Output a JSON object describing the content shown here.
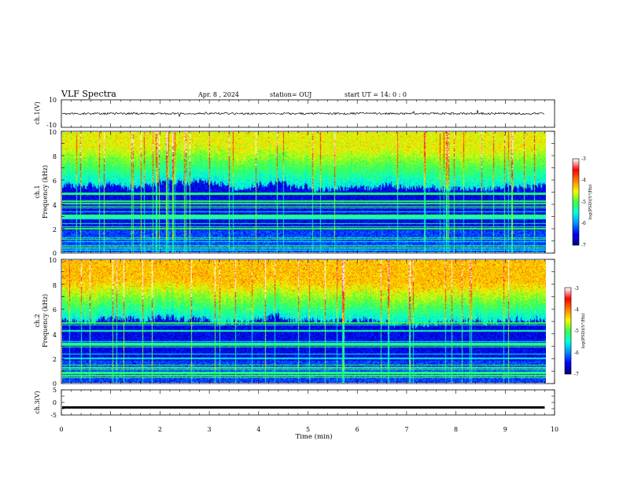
{
  "header": {
    "title": "VLF Spectra",
    "date": "Apr. 8  , 2024",
    "station": "station= OUJ",
    "start_ut": "start  UT  =   14: 0  : 0"
  },
  "colors": {
    "stops": [
      "#00007a",
      "#0000ff",
      "#0090ff",
      "#00ffe0",
      "#40ff40",
      "#f8f800",
      "#ff8000",
      "#ff0000",
      "#ffffff"
    ]
  },
  "chart_data": [
    {
      "type": "line",
      "panel": "ch1-waveform",
      "ylabel": "ch.1(V)",
      "ylim": [
        -10,
        10
      ],
      "yticks": [
        "10",
        "-10"
      ],
      "baseline_value": 0,
      "noise_amplitude": 0.7
    },
    {
      "type": "heatmap",
      "panel": "ch1-spectrogram",
      "ylabel_lines": [
        "ch.1",
        "Frequency (kHz)"
      ],
      "ylim": [
        0,
        10
      ],
      "yticks": [
        "10",
        "8",
        "6",
        "4",
        "2",
        "0"
      ],
      "xlim": [
        0,
        10
      ],
      "data_end": 9.8,
      "noise_floor_edge_khz": 5.5,
      "colorbar": {
        "label": "log(PSD)(V²/Hz)",
        "range": [
          -7,
          -3
        ],
        "ticks": [
          "-3",
          "-4",
          "-5",
          "-6",
          "-7"
        ]
      }
    },
    {
      "type": "heatmap",
      "panel": "ch2-spectrogram",
      "ylabel_lines": [
        "ch.2",
        "Frequency (kHz)"
      ],
      "ylim": [
        0,
        10
      ],
      "yticks": [
        "10",
        "8",
        "6",
        "4",
        "2",
        "0"
      ],
      "xlim": [
        0,
        10
      ],
      "data_end": 9.8,
      "noise_floor_edge_khz": 5.0,
      "colorbar": {
        "label": "log(PSD)(V²/Hz)",
        "range": [
          -7,
          -3
        ],
        "ticks": [
          "-3",
          "-4",
          "-5",
          "-6",
          "-7"
        ]
      }
    },
    {
      "type": "line",
      "panel": "ch3-waveform",
      "ylabel": "ch.3(V)",
      "ylim": [
        -5,
        5
      ],
      "yticks": [
        "5",
        "0",
        "-5"
      ],
      "baseline_value": -2,
      "xlabel": "Time  (min)",
      "xlim": [
        0,
        10
      ],
      "xticks": [
        "0",
        "1",
        "2",
        "3",
        "4",
        "5",
        "6",
        "7",
        "8",
        "9",
        "10"
      ]
    }
  ]
}
